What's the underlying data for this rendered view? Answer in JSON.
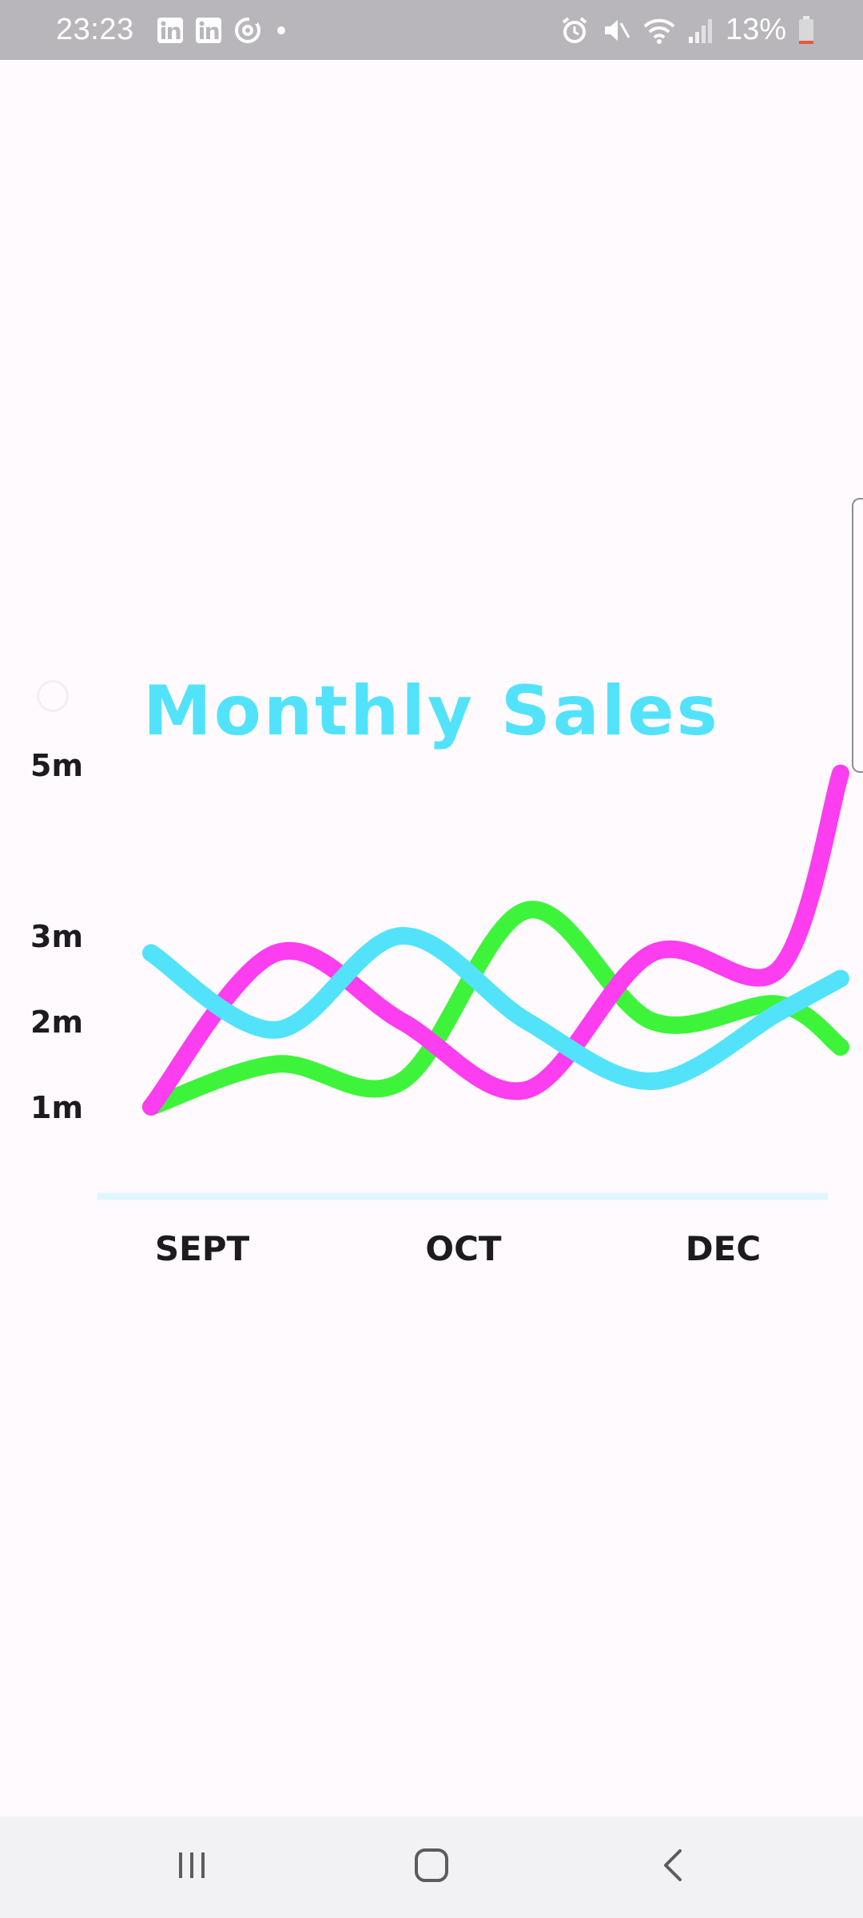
{
  "status_bar": {
    "time": "23:23",
    "battery_percent": "13%",
    "left_icons": [
      "linkedin-icon",
      "linkedin-icon",
      "sync-icon",
      "dot-icon"
    ],
    "right_icons": [
      "alarm-icon",
      "mute-icon",
      "wifi-icon",
      "signal-icon",
      "battery-icon"
    ],
    "battery_level": 0.13,
    "battery_color": "#e8593c"
  },
  "colors": {
    "title": "#52e3fb",
    "series_green": "#3ef43b",
    "series_magenta": "#fd3df0",
    "series_cyan": "#52e3fb",
    "baseline": "#dff6fd",
    "background": "#fffafe"
  },
  "chart_data": {
    "type": "line",
    "title": "Monthly Sales",
    "xlabel": "",
    "ylabel": "",
    "x_tick_labels": [
      "SEPT",
      "OCT",
      "DEC"
    ],
    "y_tick_labels": [
      "5m",
      "3m",
      "2m",
      "1m"
    ],
    "y_tick_values": [
      5,
      3,
      2,
      1
    ],
    "x_range": [
      0.5,
      12.5
    ],
    "y_range": [
      0,
      5
    ],
    "grid": false,
    "legend": "none",
    "series": [
      {
        "color": "#3ef43b",
        "x": [
          1,
          3,
          5,
          7,
          9,
          11,
          12
        ],
        "y": [
          1,
          1.5,
          1.3,
          3.3,
          2,
          2.2,
          1.7
        ]
      },
      {
        "color": "#fd3df0",
        "x": [
          1,
          3,
          5,
          7,
          9,
          11,
          12
        ],
        "y": [
          1,
          2.8,
          2,
          1.2,
          2.8,
          2.6,
          4.9
        ]
      },
      {
        "color": "#52e3fb",
        "x": [
          1,
          3,
          5,
          7,
          9,
          11,
          12
        ],
        "y": [
          2.8,
          1.9,
          3,
          2,
          1.3,
          2.1,
          2.5
        ]
      }
    ]
  },
  "nav_bar": {
    "recents_icon": "recents-icon",
    "home_icon": "home-icon",
    "back_icon": "back-icon"
  }
}
